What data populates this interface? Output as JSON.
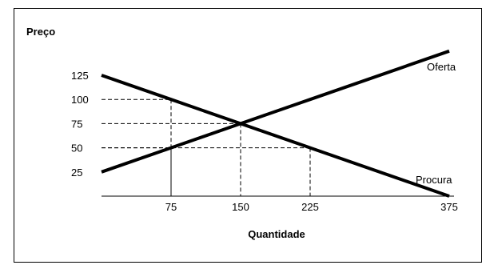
{
  "chart_data": {
    "type": "line",
    "xlabel": "Quantidade",
    "ylabel": "Preço",
    "x_ticks": [
      75,
      150,
      225,
      375
    ],
    "y_ticks": [
      125,
      100,
      75,
      50,
      25
    ],
    "xlim": [
      0,
      375
    ],
    "ylim": [
      0,
      125
    ],
    "grid": false,
    "series": [
      {
        "name": "Oferta",
        "color": "#000000",
        "points": [
          [
            0,
            25
          ],
          [
            75,
            50
          ],
          [
            150,
            75
          ],
          [
            225,
            100
          ],
          [
            375,
            150
          ]
        ]
      },
      {
        "name": "Procura",
        "color": "#000000",
        "points": [
          [
            0,
            125
          ],
          [
            75,
            100
          ],
          [
            150,
            75
          ],
          [
            225,
            50
          ],
          [
            375,
            0
          ]
        ]
      }
    ],
    "reference_points": [
      {
        "x": 75,
        "y": 100
      },
      {
        "x": 150,
        "y": 75
      },
      {
        "x": 225,
        "y": 50
      },
      {
        "x": 75,
        "y": 50
      }
    ]
  }
}
